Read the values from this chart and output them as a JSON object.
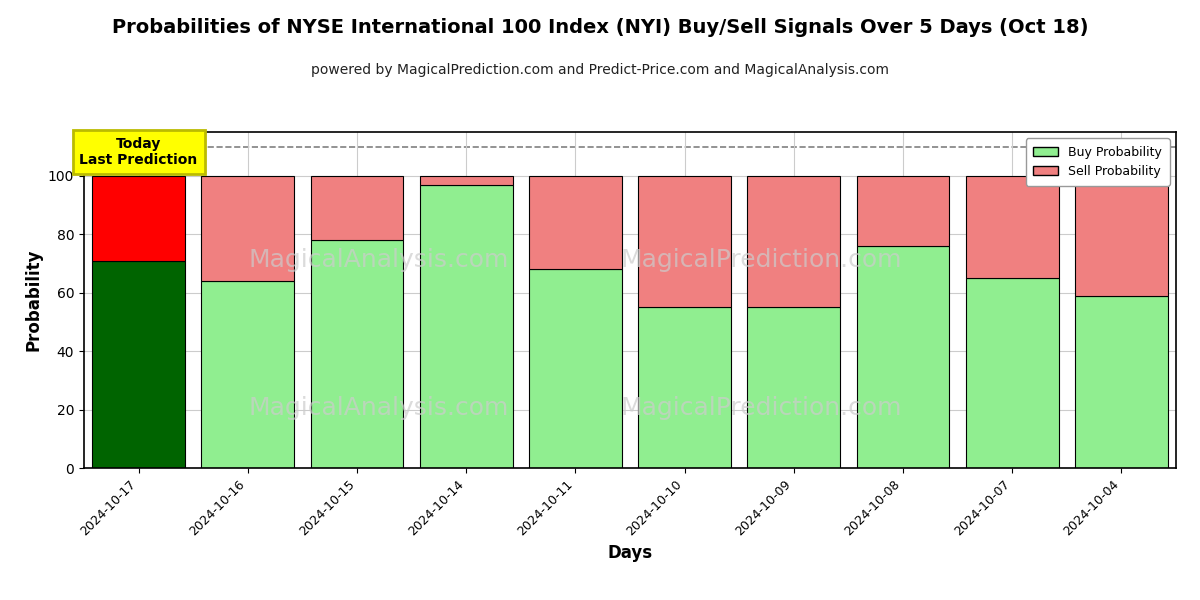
{
  "title": "Probabilities of NYSE International 100 Index (NYI) Buy/Sell Signals Over 5 Days (Oct 18)",
  "subtitle": "powered by MagicalPrediction.com and Predict-Price.com and MagicalAnalysis.com",
  "xlabel": "Days",
  "ylabel": "Probability",
  "days": [
    "2024-10-17",
    "2024-10-16",
    "2024-10-15",
    "2024-10-14",
    "2024-10-11",
    "2024-10-10",
    "2024-10-09",
    "2024-10-08",
    "2024-10-07",
    "2024-10-04"
  ],
  "buy_probs": [
    71,
    64,
    78,
    97,
    68,
    55,
    55,
    76,
    65,
    59
  ],
  "sell_probs": [
    29,
    36,
    22,
    3,
    32,
    45,
    45,
    24,
    35,
    41
  ],
  "today_buy_color": "#006400",
  "today_sell_color": "#ff0000",
  "other_buy_color": "#90ee90",
  "other_sell_color": "#f08080",
  "bar_edge_color": "#000000",
  "today_annotation_bg": "#ffff00",
  "today_annotation_text": "Today\nLast Prediction",
  "dashed_line_y": 110,
  "ylim_max": 115,
  "yticks": [
    0,
    20,
    40,
    60,
    80,
    100
  ],
  "grid_color": "#cccccc",
  "watermark_texts": [
    "MagicalAnalysis.com",
    "MagicalPrediction.com"
  ],
  "background_color": "#ffffff",
  "title_fontsize": 14,
  "subtitle_fontsize": 10,
  "bar_width": 0.85
}
